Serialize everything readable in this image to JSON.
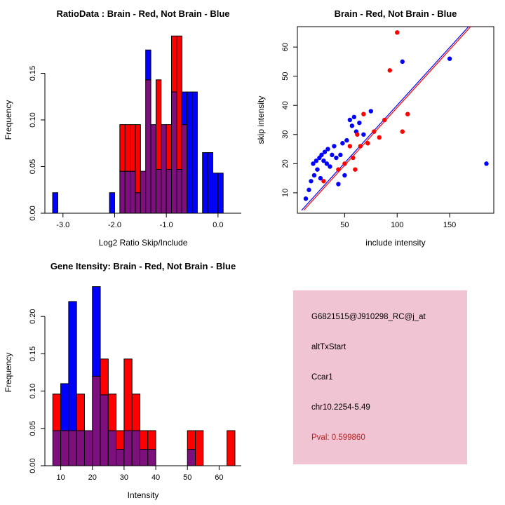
{
  "colors": {
    "red": "#FF0000",
    "blue": "#0000FF",
    "overlap": "#7D107D",
    "axis": "#000000",
    "info_bg": "#F0C4D2",
    "pval_text": "#B22222"
  },
  "charts": [
    {
      "type": "histogram-overlay",
      "title": "RatioData : Brain - Red, Not Brain - Blue",
      "xlabel": "Log2 Ratio Skip/Include",
      "ylabel": "Frequency",
      "xlim": [
        -3.35,
        0.45
      ],
      "ylim": [
        0,
        0.2
      ],
      "xticks": [
        -3.0,
        -2.0,
        -1.0,
        0.0
      ],
      "xtick_labels": [
        "-3.0",
        "-2.0",
        "-1.0",
        "0.0"
      ],
      "yticks": [
        0,
        0.05,
        0.1,
        0.15
      ],
      "ytick_labels": [
        "0.00",
        "0.05",
        "0.10",
        "0.15"
      ],
      "bin_width": 0.1,
      "bins": [
        {
          "x": -3.2,
          "red": 0,
          "blue": 0.022
        },
        {
          "x": -2.1,
          "red": 0,
          "blue": 0.022
        },
        {
          "x": -1.9,
          "red": 0.095,
          "blue": 0.045
        },
        {
          "x": -1.8,
          "red": 0.095,
          "blue": 0.045
        },
        {
          "x": -1.7,
          "red": 0.095,
          "blue": 0.045
        },
        {
          "x": -1.6,
          "red": 0.095,
          "blue": 0.022
        },
        {
          "x": -1.5,
          "red": 0.045,
          "blue": 0.045
        },
        {
          "x": -1.4,
          "red": 0.143,
          "blue": 0.175
        },
        {
          "x": -1.3,
          "red": 0.095,
          "blue": 0.095
        },
        {
          "x": -1.2,
          "red": 0.143,
          "blue": 0.047
        },
        {
          "x": -1.1,
          "red": 0.095,
          "blue": 0.095
        },
        {
          "x": -1.0,
          "red": 0.095,
          "blue": 0.047
        },
        {
          "x": -0.9,
          "red": 0.19,
          "blue": 0.13
        },
        {
          "x": -0.8,
          "red": 0.19,
          "blue": 0.047
        },
        {
          "x": -0.7,
          "red": 0.095,
          "blue": 0.13
        },
        {
          "x": -0.6,
          "red": 0,
          "blue": 0.13
        },
        {
          "x": -0.5,
          "red": 0,
          "blue": 0.13
        },
        {
          "x": -0.3,
          "red": 0,
          "blue": 0.065
        },
        {
          "x": -0.2,
          "red": 0,
          "blue": 0.065
        },
        {
          "x": -0.1,
          "red": 0,
          "blue": 0.043
        },
        {
          "x": 0.0,
          "red": 0,
          "blue": 0.043
        }
      ]
    },
    {
      "type": "scatter",
      "title": "Brain - Red, Not Brain - Blue",
      "xlabel": "include intensity",
      "ylabel": "skip intensity",
      "xlim": [
        5,
        192
      ],
      "ylim": [
        3,
        67
      ],
      "xticks": [
        50,
        100,
        150
      ],
      "xtick_labels": [
        "50",
        "100",
        "150"
      ],
      "yticks": [
        10,
        20,
        30,
        40,
        50,
        60
      ],
      "ytick_labels": [
        "10",
        "20",
        "30",
        "40",
        "50",
        "60"
      ],
      "series": [
        {
          "name": "Not Brain",
          "color": "blue",
          "points": [
            [
              13,
              8
            ],
            [
              16,
              11
            ],
            [
              18,
              14
            ],
            [
              20,
              20
            ],
            [
              21,
              16
            ],
            [
              23,
              21
            ],
            [
              24,
              18
            ],
            [
              26,
              22
            ],
            [
              27,
              15
            ],
            [
              28,
              23
            ],
            [
              30,
              21
            ],
            [
              31,
              24
            ],
            [
              33,
              20
            ],
            [
              34,
              25
            ],
            [
              36,
              19
            ],
            [
              38,
              23
            ],
            [
              40,
              26
            ],
            [
              42,
              22
            ],
            [
              44,
              13
            ],
            [
              46,
              23
            ],
            [
              48,
              27
            ],
            [
              50,
              16
            ],
            [
              52,
              28
            ],
            [
              55,
              35
            ],
            [
              57,
              33
            ],
            [
              59,
              36
            ],
            [
              61,
              31
            ],
            [
              64,
              34
            ],
            [
              68,
              30
            ],
            [
              75,
              38
            ],
            [
              105,
              55
            ],
            [
              150,
              56
            ],
            [
              185,
              20
            ]
          ]
        },
        {
          "name": "Brain",
          "color": "red",
          "points": [
            [
              30,
              14
            ],
            [
              44,
              18
            ],
            [
              50,
              20
            ],
            [
              55,
              26
            ],
            [
              58,
              22
            ],
            [
              60,
              18
            ],
            [
              62,
              30
            ],
            [
              65,
              26
            ],
            [
              68,
              37
            ],
            [
              72,
              27
            ],
            [
              78,
              31
            ],
            [
              83,
              29
            ],
            [
              88,
              35
            ],
            [
              93,
              52
            ],
            [
              100,
              65
            ],
            [
              105,
              31
            ],
            [
              110,
              37
            ]
          ]
        }
      ],
      "lines": [
        {
          "color": "blue",
          "x1": 9,
          "y1": 4,
          "x2": 168,
          "y2": 67
        },
        {
          "color": "red",
          "x1": 11,
          "y1": 4,
          "x2": 170,
          "y2": 67
        }
      ]
    },
    {
      "type": "histogram-overlay",
      "title": "Gene Itensity: Brain - Red, Not Brain - Blue",
      "xlabel": "Intensity",
      "ylabel": "Frequency",
      "xlim": [
        5,
        67
      ],
      "ylim": [
        0,
        0.25
      ],
      "xticks": [
        10,
        20,
        30,
        40,
        50,
        60
      ],
      "xtick_labels": [
        "10",
        "20",
        "30",
        "40",
        "50",
        "60"
      ],
      "yticks": [
        0,
        0.05,
        0.1,
        0.15,
        0.2
      ],
      "ytick_labels": [
        "0.00",
        "0.05",
        "0.10",
        "0.15",
        "0.20"
      ],
      "bin_width": 2.5,
      "bins": [
        {
          "x": 7.5,
          "red": 0.096,
          "blue": 0.047
        },
        {
          "x": 10,
          "red": 0.047,
          "blue": 0.11
        },
        {
          "x": 12.5,
          "red": 0.047,
          "blue": 0.22
        },
        {
          "x": 15,
          "red": 0.096,
          "blue": 0.047
        },
        {
          "x": 17.5,
          "red": 0.047,
          "blue": 0.047
        },
        {
          "x": 20,
          "red": 0.12,
          "blue": 0.24
        },
        {
          "x": 22.5,
          "red": 0.143,
          "blue": 0.095
        },
        {
          "x": 25,
          "red": 0.096,
          "blue": 0.047
        },
        {
          "x": 27.5,
          "red": 0.047,
          "blue": 0.022
        },
        {
          "x": 30,
          "red": 0.143,
          "blue": 0.047
        },
        {
          "x": 32.5,
          "red": 0.096,
          "blue": 0.047
        },
        {
          "x": 35,
          "red": 0.047,
          "blue": 0.022
        },
        {
          "x": 37.5,
          "red": 0.047,
          "blue": 0.022
        },
        {
          "x": 50,
          "red": 0.047,
          "blue": 0.022
        },
        {
          "x": 52.5,
          "red": 0.047,
          "blue": 0
        },
        {
          "x": 62.5,
          "red": 0.047,
          "blue": 0
        }
      ]
    }
  ],
  "info": {
    "lines": [
      "G6821515@J910298_RC@j_at",
      "altTxStart",
      "Ccar1",
      "chr10.2254-5.49",
      "Pval: 0.599860"
    ]
  }
}
